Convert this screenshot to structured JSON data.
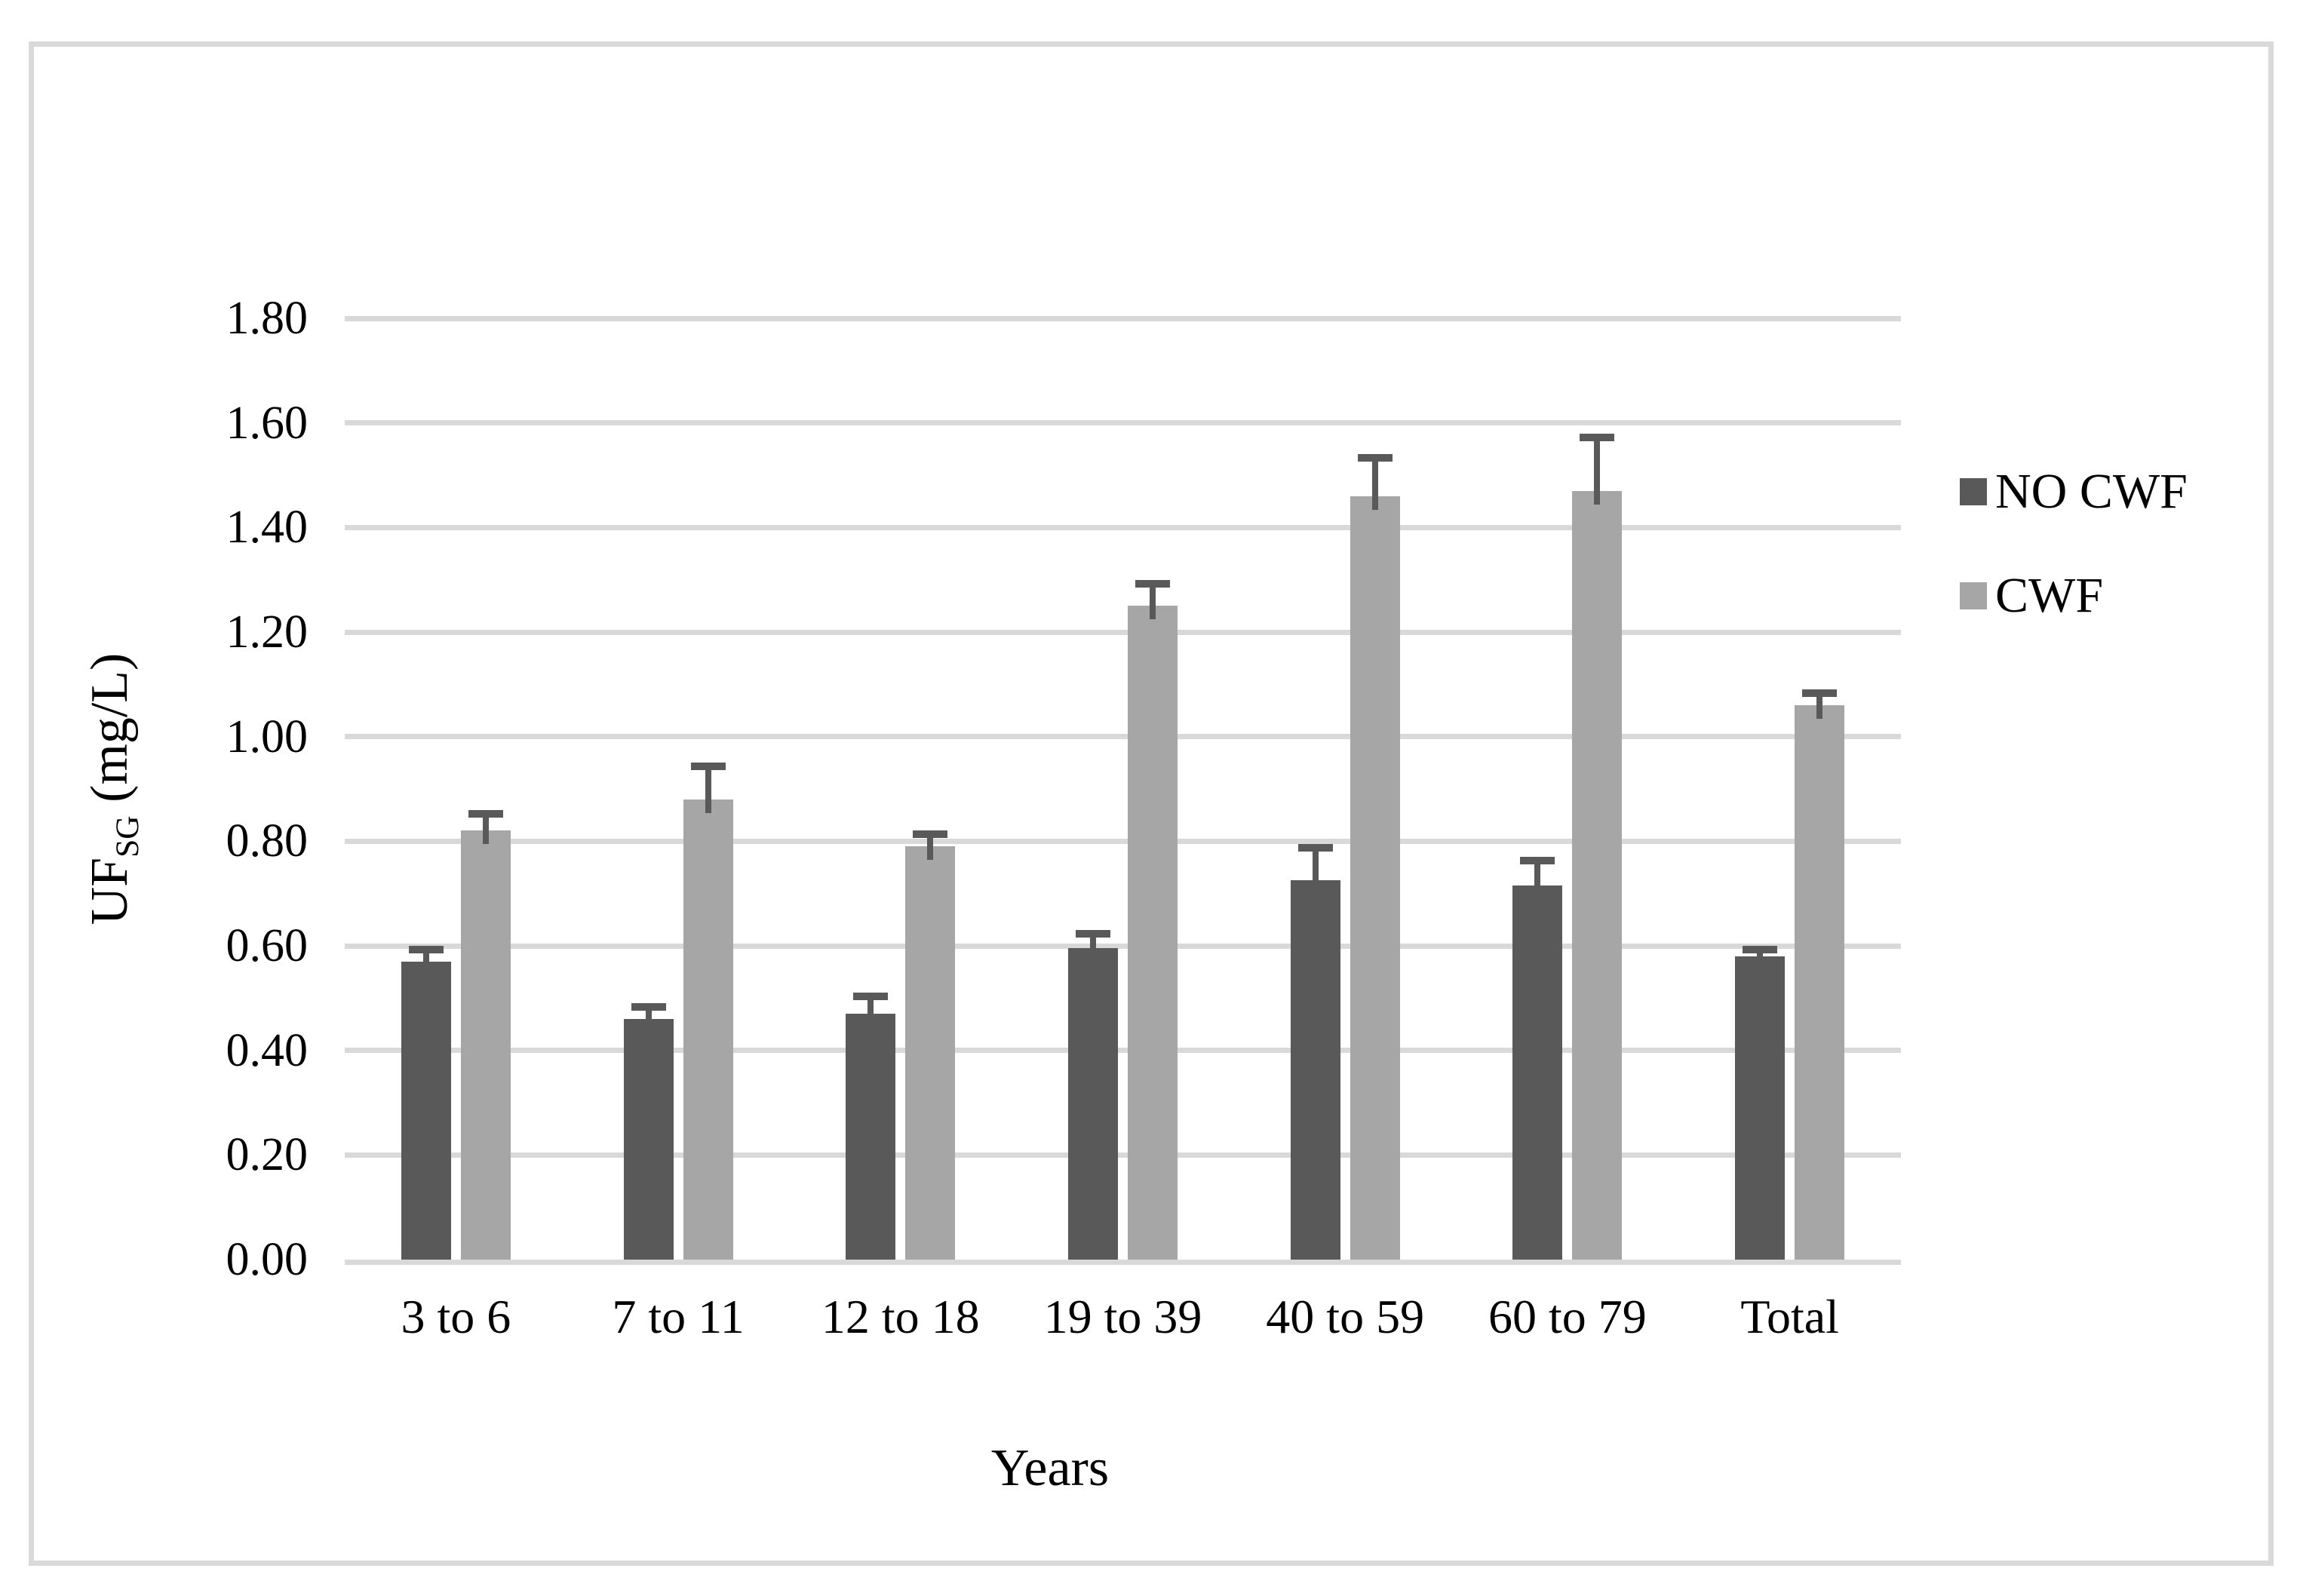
{
  "figure": {
    "background_color": "#ffffff",
    "border_color": "#d9d9d9"
  },
  "chart_data": {
    "type": "bar",
    "title": "",
    "xlabel": "Years",
    "ylabel": {
      "prefix": "UF",
      "subscript": "SG",
      "suffix": " (mg/L)"
    },
    "categories": [
      "3 to 6",
      "7 to 11",
      "12 to 18",
      "19 to 39",
      "40 to 59",
      "60 to 79",
      "Total"
    ],
    "series": [
      {
        "name": "NO CWF",
        "color": "#595959",
        "values": [
          0.57,
          0.46,
          0.47,
          0.595,
          0.725,
          0.715,
          0.58
        ],
        "error_up": [
          0.03,
          0.03,
          0.04,
          0.035,
          0.07,
          0.055,
          0.02
        ]
      },
      {
        "name": "CWF",
        "color": "#a6a6a6",
        "values": [
          0.82,
          0.88,
          0.79,
          1.25,
          1.46,
          1.47,
          1.06
        ],
        "error_up": [
          0.04,
          0.07,
          0.03,
          0.05,
          0.08,
          0.11,
          0.03
        ]
      }
    ],
    "y_axis": {
      "min": 0,
      "max": 1.8,
      "tick_step": 0.2,
      "tick_labels": [
        "0.00",
        "0.20",
        "0.40",
        "0.60",
        "0.80",
        "1.00",
        "1.20",
        "1.40",
        "1.60",
        "1.80"
      ]
    },
    "grid": true,
    "legend_position": "right",
    "gridline_color": "#d9d9d9",
    "error_bar_color": "#595959"
  }
}
